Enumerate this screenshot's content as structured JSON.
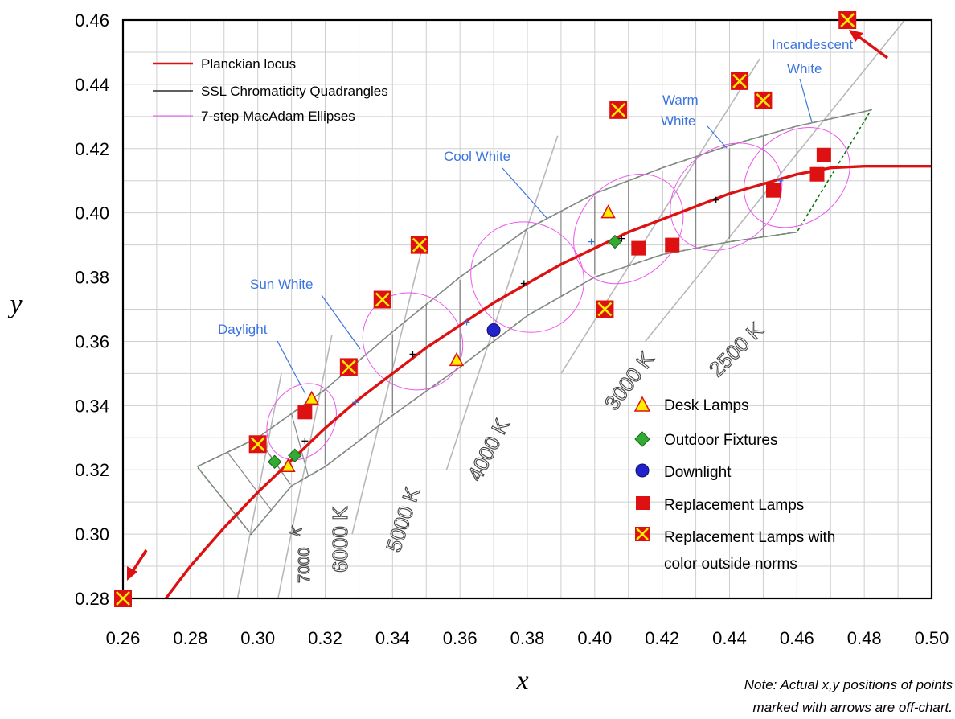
{
  "chart_data": {
    "type": "scatter",
    "title": "",
    "xlabel": "x",
    "ylabel": "y",
    "xlim": [
      0.26,
      0.5
    ],
    "ylim": [
      0.28,
      0.46
    ],
    "xticks": [
      "0.26",
      "0.28",
      "0.30",
      "0.32",
      "0.34",
      "0.36",
      "0.38",
      "0.40",
      "0.42",
      "0.44",
      "0.46",
      "0.48",
      "0.50"
    ],
    "yticks": [
      "0.28",
      "0.30",
      "0.32",
      "0.34",
      "0.36",
      "0.38",
      "0.40",
      "0.42",
      "0.44",
      "0.46"
    ],
    "grid": true,
    "planckian_locus": {
      "name": "Planckian locus",
      "color": "#dd1111",
      "x": [
        0.272,
        0.28,
        0.29,
        0.3,
        0.31,
        0.32,
        0.33,
        0.34,
        0.35,
        0.36,
        0.37,
        0.38,
        0.39,
        0.4,
        0.41,
        0.42,
        0.43,
        0.44,
        0.45,
        0.46,
        0.47,
        0.48,
        0.5
      ],
      "y": [
        0.279,
        0.29,
        0.302,
        0.313,
        0.323,
        0.333,
        0.342,
        0.35,
        0.358,
        0.365,
        0.372,
        0.378,
        0.384,
        0.389,
        0.394,
        0.398,
        0.402,
        0.406,
        0.409,
        0.412,
        0.414,
        0.4145,
        0.4145
      ]
    },
    "isotemperature_lines": [
      {
        "label": "7000 K",
        "x": [
          0.294,
          0.307
        ],
        "y": [
          0.28,
          0.35
        ]
      },
      {
        "label": "6000 K",
        "x": [
          0.306,
          0.322
        ],
        "y": [
          0.28,
          0.362
        ]
      },
      {
        "label": "5000 K",
        "x": [
          0.328,
          0.349
        ],
        "y": [
          0.3,
          0.39
        ]
      },
      {
        "label": "4000 K",
        "x": [
          0.356,
          0.389
        ],
        "y": [
          0.32,
          0.424
        ]
      },
      {
        "label": "3000 K",
        "x": [
          0.39,
          0.449
        ],
        "y": [
          0.35,
          0.448
        ]
      },
      {
        "label": "2500 K",
        "x": [
          0.415,
          0.492
        ],
        "y": [
          0.36,
          0.46
        ]
      }
    ],
    "quadrangles_outline": {
      "name": "SSL Chromaticity Quadrangles",
      "upper_x": [
        0.282,
        0.3,
        0.32,
        0.34,
        0.36,
        0.38,
        0.4,
        0.42,
        0.44,
        0.46,
        0.482
      ],
      "upper_y": [
        0.321,
        0.33,
        0.345,
        0.363,
        0.38,
        0.395,
        0.406,
        0.414,
        0.421,
        0.427,
        0.432
      ],
      "lower_x": [
        0.298,
        0.31,
        0.32,
        0.34,
        0.36,
        0.38,
        0.4,
        0.42,
        0.44,
        0.46
      ],
      "lower_y": [
        0.3,
        0.315,
        0.321,
        0.337,
        0.352,
        0.368,
        0.38,
        0.387,
        0.391,
        0.394
      ]
    },
    "ellipses": [
      {
        "name": "7-step MacAdam Ellipses",
        "cx": 0.313,
        "cy": 0.335,
        "rx": 0.012,
        "ry": 0.01,
        "angle": 57
      },
      {
        "cx": 0.346,
        "cy": 0.36,
        "rx": 0.014,
        "ry": 0.016,
        "angle": 55
      },
      {
        "cx": 0.38,
        "cy": 0.38,
        "rx": 0.016,
        "ry": 0.018,
        "angle": 55
      },
      {
        "cx": 0.41,
        "cy": 0.395,
        "rx": 0.018,
        "ry": 0.015,
        "angle": 45
      },
      {
        "cx": 0.439,
        "cy": 0.405,
        "rx": 0.018,
        "ry": 0.015,
        "angle": 40
      },
      {
        "cx": 0.46,
        "cy": 0.411,
        "rx": 0.017,
        "ry": 0.014,
        "angle": 38
      }
    ],
    "center_marks_black": [
      [
        0.314,
        0.329
      ],
      [
        0.346,
        0.356
      ],
      [
        0.379,
        0.378
      ],
      [
        0.408,
        0.392
      ],
      [
        0.436,
        0.404
      ]
    ],
    "center_marks_blue": [
      [
        0.329,
        0.341
      ],
      [
        0.362,
        0.366
      ],
      [
        0.399,
        0.391
      ],
      [
        0.455,
        0.41
      ]
    ],
    "series": [
      {
        "name": "Desk Lamps",
        "marker": "triangle",
        "color": "#ffee00",
        "x": [
          0.316,
          0.309,
          0.359,
          0.404
        ],
        "y": [
          0.342,
          0.321,
          0.354,
          0.4
        ]
      },
      {
        "name": "Outdoor Fixtures",
        "marker": "diamond",
        "color": "#33aa33",
        "x": [
          0.305,
          0.311,
          0.406
        ],
        "y": [
          0.3225,
          0.3245,
          0.391
        ]
      },
      {
        "name": "Downlight",
        "marker": "circle",
        "color": "#2222cc",
        "x": [
          0.37
        ],
        "y": [
          0.3635
        ]
      },
      {
        "name": "Replacement Lamps",
        "marker": "square",
        "color": "#dd1111",
        "x": [
          0.314,
          0.413,
          0.423,
          0.453,
          0.466,
          0.468
        ],
        "y": [
          0.338,
          0.389,
          0.39,
          0.407,
          0.412,
          0.418
        ]
      },
      {
        "name": "Replacement Lamps with color outside norms",
        "marker": "square-x",
        "color": "#dd1111",
        "x": [
          0.3,
          0.327,
          0.337,
          0.348,
          0.403,
          0.407,
          0.443,
          0.45,
          0.475,
          0.26
        ],
        "y": [
          0.328,
          0.352,
          0.373,
          0.39,
          0.37,
          0.432,
          0.441,
          0.435,
          0.46,
          0.28
        ]
      }
    ],
    "legend": {
      "placement": "top-left",
      "lines": [
        {
          "label": "Planckian locus",
          "color": "#dd1111"
        },
        {
          "label": "SSL Chromaticity Quadrangles",
          "color": "#000000"
        },
        {
          "label": "7-step MacAdam Ellipses",
          "color": "#ee55ee"
        }
      ],
      "markers_placement": "bottom-right",
      "markers": [
        {
          "label": "Desk Lamps"
        },
        {
          "label": "Outdoor Fixtures"
        },
        {
          "label": "Downlight"
        },
        {
          "label": "Replacement Lamps"
        },
        {
          "label_line1": "Replacement Lamps with",
          "label_line2": "color outside norms"
        }
      ]
    },
    "annotations": {
      "daylight": "Daylight",
      "sun_white": "Sun White",
      "cool_white": "Cool White",
      "warm_white_1": "Warm",
      "warm_white_2": "White",
      "incandescent_1": "Incandescent",
      "incandescent_2": "White",
      "cct_7000_a": "7000",
      "cct_7000_b": "K",
      "cct_6000": "6000 K",
      "cct_5000": "5000 K",
      "cct_4000": "4000 K",
      "cct_3000": "3000 K",
      "cct_2500": "2500 K",
      "note_line1": "Note: Actual x,y positions of points",
      "note_line2": "marked with arrows are off-chart."
    }
  }
}
